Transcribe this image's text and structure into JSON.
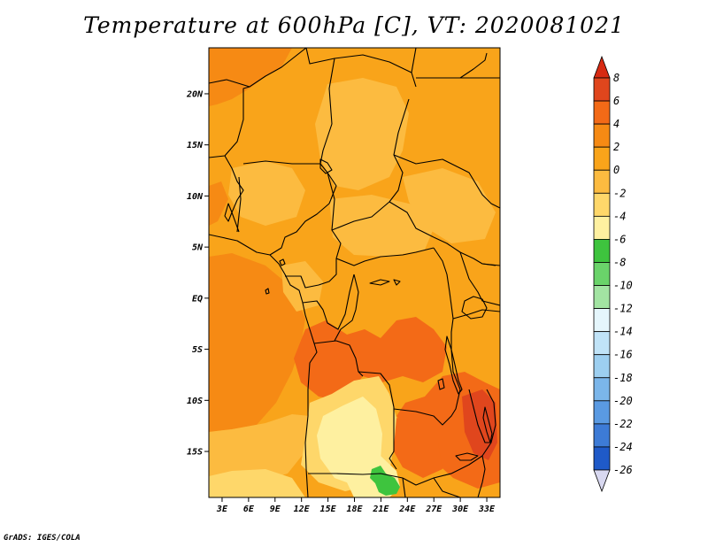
{
  "title": "Temperature at 600hPa [C], VT: 2020081021",
  "credit": "GrADS: IGES/COLA",
  "lat_ticks": [
    {
      "label": "20N",
      "value": 20
    },
    {
      "label": "15N",
      "value": 15
    },
    {
      "label": "10N",
      "value": 10
    },
    {
      "label": "5N",
      "value": 5
    },
    {
      "label": "EQ",
      "value": 0
    },
    {
      "label": "5S",
      "value": -5
    },
    {
      "label": "10S",
      "value": -10
    },
    {
      "label": "15S",
      "value": -15
    }
  ],
  "lon_ticks": [
    {
      "label": "3E",
      "value": 3
    },
    {
      "label": "6E",
      "value": 6
    },
    {
      "label": "9E",
      "value": 9
    },
    {
      "label": "12E",
      "value": 12
    },
    {
      "label": "15E",
      "value": 15
    },
    {
      "label": "18E",
      "value": 18
    },
    {
      "label": "21E",
      "value": 21
    },
    {
      "label": "24E",
      "value": 24
    },
    {
      "label": "27E",
      "value": 27
    },
    {
      "label": "30E",
      "value": 30
    },
    {
      "label": "33E",
      "value": 33
    }
  ],
  "extent": {
    "lon_min": 1.5,
    "lon_max": 34.5,
    "lat_min": -19.5,
    "lat_max": 24.5
  },
  "colorbar": {
    "labels": [
      "8",
      "6",
      "4",
      "2",
      "0",
      "-2",
      "-4",
      "-6",
      "-8",
      "-10",
      "-12",
      "-14",
      "-16",
      "-18",
      "-20",
      "-22",
      "-24",
      "-26"
    ],
    "colors": [
      "#e0461d",
      "#f36a17",
      "#f68a14",
      "#f9a41a",
      "#fcbb40",
      "#fed76a",
      "#fef0a0",
      "#3ec43e",
      "#6ad36a",
      "#a2e4a2",
      "#e5f6fc",
      "#c0e3f7",
      "#9dcff0",
      "#7bb6ea",
      "#5a9ae2",
      "#3d7bd6",
      "#1f5ac8",
      "#0e30a0",
      "#0a1570"
    ],
    "top_color": "#d72a12",
    "bottom_color": "#d8d8f0"
  },
  "field_colors": {
    "base": "#f9a41a",
    "warm_orange": "#f68a14",
    "hot": "#f36a17",
    "light_orange": "#fcbb40",
    "pale": "#fed76a",
    "cream": "#fef0a0",
    "green": "#3ec43e"
  }
}
